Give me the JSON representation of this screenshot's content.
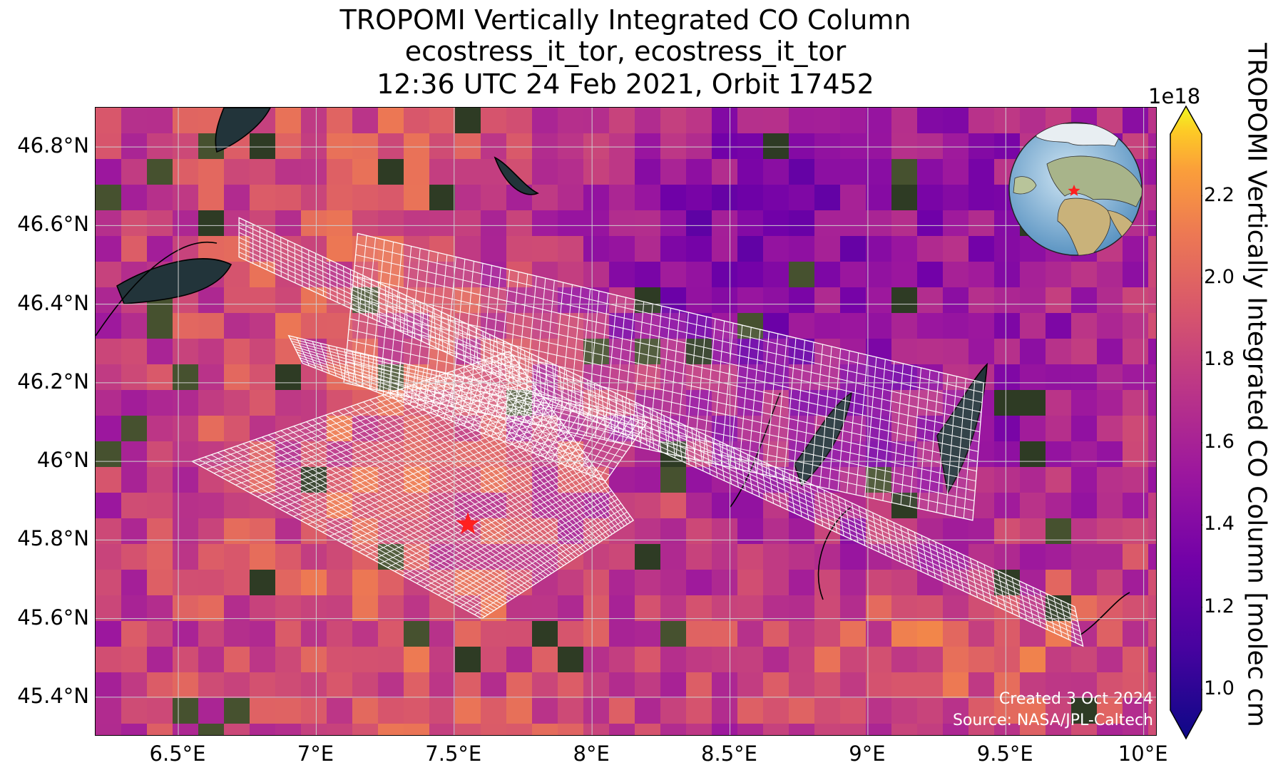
{
  "title": {
    "line1": "TROPOMI Vertically Integrated CO Column",
    "line2": "ecostress_it_tor, ecostress_it_tor",
    "line3": "12:36 UTC 24 Feb 2021, Orbit 17452"
  },
  "map": {
    "lon_range": [
      6.2,
      10.05
    ],
    "lat_range": [
      45.3,
      46.9
    ],
    "lat_ticks": [
      {
        "lat": 46.8,
        "label": "46.8°N"
      },
      {
        "lat": 46.6,
        "label": "46.6°N"
      },
      {
        "lat": 46.4,
        "label": "46.4°N"
      },
      {
        "lat": 46.2,
        "label": "46.2°N"
      },
      {
        "lat": 46.0,
        "label": "46°N"
      },
      {
        "lat": 45.8,
        "label": "45.8°N"
      },
      {
        "lat": 45.6,
        "label": "45.6°N"
      },
      {
        "lat": 45.4,
        "label": "45.4°N"
      }
    ],
    "lon_ticks": [
      {
        "lon": 6.5,
        "label": "6.5°E"
      },
      {
        "lon": 7.0,
        "label": "7°E"
      },
      {
        "lon": 7.5,
        "label": "7.5°E"
      },
      {
        "lon": 8.0,
        "label": "8°E"
      },
      {
        "lon": 8.5,
        "label": "8.5°E"
      },
      {
        "lon": 9.0,
        "label": "9°E"
      },
      {
        "lon": 9.5,
        "label": "9.5°E"
      },
      {
        "lon": 10.0,
        "label": "10°E"
      }
    ],
    "site_marker": {
      "lon": 7.55,
      "lat": 45.84,
      "color": "#ff2020"
    },
    "gridlines": true
  },
  "credits": {
    "created": "Created 3 Oct 2024",
    "source": "Source: NASA/JPL-Caltech"
  },
  "colorbar": {
    "colormap": "plasma",
    "range": [
      0.95,
      2.35
    ],
    "exponent_label": "1e18",
    "label": "TROPOMI Vertically Integrated CO Column [molec cm",
    "ticks": [
      {
        "value": 1.0,
        "label": "1.0"
      },
      {
        "value": 1.2,
        "label": "1.2"
      },
      {
        "value": 1.4,
        "label": "1.4"
      },
      {
        "value": 1.6,
        "label": "1.6"
      },
      {
        "value": 1.8,
        "label": "1.8"
      },
      {
        "value": 2.0,
        "label": "2.0"
      },
      {
        "value": 2.2,
        "label": "2.2"
      }
    ]
  }
}
